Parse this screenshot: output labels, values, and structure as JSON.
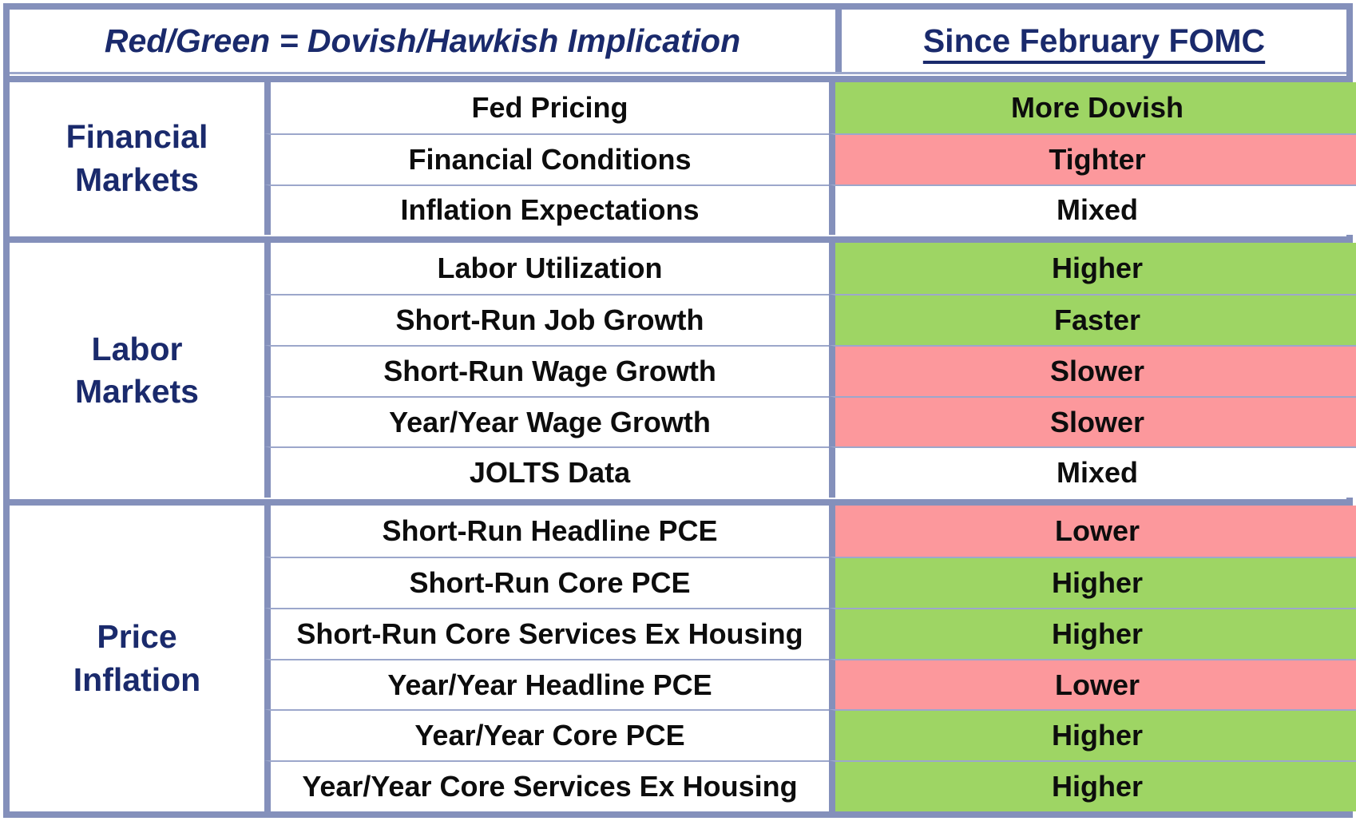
{
  "table": {
    "header": {
      "legend_title": "Red/Green = Dovish/Hawkish Implication",
      "column_title": "Since February FOMC"
    },
    "colors": {
      "green": "#9ed564",
      "red": "#fc989c",
      "white": "#ffffff",
      "navy_text": "#1a2a6c",
      "border_thick": "#8490bb",
      "border_thin": "#9ca7cb"
    },
    "sections": [
      {
        "category": "Financial Markets",
        "rows": [
          {
            "indicator": "Fed Pricing",
            "value": "More Dovish",
            "status": "green"
          },
          {
            "indicator": "Financial Conditions",
            "value": "Tighter",
            "status": "red"
          },
          {
            "indicator": "Inflation Expectations",
            "value": "Mixed",
            "status": "white"
          }
        ]
      },
      {
        "category": "Labor Markets",
        "rows": [
          {
            "indicator": "Labor Utilization",
            "value": "Higher",
            "status": "green"
          },
          {
            "indicator": "Short-Run Job Growth",
            "value": "Faster",
            "status": "green"
          },
          {
            "indicator": "Short-Run Wage Growth",
            "value": "Slower",
            "status": "red"
          },
          {
            "indicator": "Year/Year Wage Growth",
            "value": "Slower",
            "status": "red"
          },
          {
            "indicator": "JOLTS Data",
            "value": "Mixed",
            "status": "white"
          }
        ]
      },
      {
        "category": "Price Inflation",
        "rows": [
          {
            "indicator": "Short-Run Headline PCE",
            "value": "Lower",
            "status": "red"
          },
          {
            "indicator": "Short-Run Core PCE",
            "value": "Higher",
            "status": "green"
          },
          {
            "indicator": "Short-Run Core Services Ex Housing",
            "value": "Higher",
            "status": "green"
          },
          {
            "indicator": "Year/Year Headline PCE",
            "value": "Lower",
            "status": "red"
          },
          {
            "indicator": "Year/Year Core PCE",
            "value": "Higher",
            "status": "green"
          },
          {
            "indicator": "Year/Year Core Services Ex Housing",
            "value": "Higher",
            "status": "green"
          }
        ]
      }
    ]
  }
}
